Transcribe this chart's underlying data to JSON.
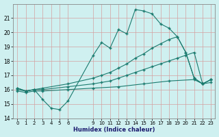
{
  "xlabel": "Humidex (Indice chaleur)",
  "bg_color": "#cff0f0",
  "grid_color": "#e8e8e8",
  "line_color": "#1a7a6e",
  "x_ticks": [
    0,
    1,
    2,
    3,
    4,
    5,
    6,
    9,
    10,
    11,
    12,
    13,
    14,
    15,
    16,
    17,
    18,
    19,
    20,
    21,
    22,
    23
  ],
  "ylim": [
    14,
    22
  ],
  "xlim": [
    -0.5,
    23.5
  ],
  "yticks": [
    14,
    15,
    16,
    17,
    18,
    19,
    20,
    21
  ],
  "lines": [
    {
      "x": [
        0,
        1,
        2,
        3,
        4,
        5,
        6,
        9,
        10,
        11,
        12,
        13,
        14,
        15,
        16,
        17,
        18,
        19,
        20,
        21,
        22,
        23
      ],
      "y": [
        16.1,
        15.9,
        16.0,
        15.3,
        14.7,
        14.6,
        15.2,
        18.4,
        19.3,
        18.9,
        20.2,
        19.9,
        21.6,
        21.5,
        21.3,
        20.6,
        20.3,
        19.7,
        18.6,
        16.8,
        16.4,
        16.7
      ]
    },
    {
      "x": [
        0,
        1,
        2,
        3,
        6,
        9,
        10,
        11,
        12,
        13,
        14,
        15,
        16,
        17,
        18,
        19,
        20,
        21,
        22,
        23
      ],
      "y": [
        16.1,
        15.9,
        16.0,
        16.1,
        16.4,
        16.8,
        17.0,
        17.2,
        17.5,
        17.8,
        18.2,
        18.5,
        18.9,
        19.2,
        19.5,
        19.7,
        18.6,
        16.8,
        16.4,
        16.7
      ]
    },
    {
      "x": [
        0,
        1,
        2,
        3,
        6,
        9,
        10,
        11,
        12,
        13,
        14,
        15,
        16,
        17,
        18,
        19,
        20,
        21,
        22,
        23
      ],
      "y": [
        16.0,
        15.9,
        16.0,
        16.0,
        16.2,
        16.4,
        16.5,
        16.6,
        16.8,
        17.0,
        17.2,
        17.4,
        17.6,
        17.8,
        18.0,
        18.2,
        18.4,
        18.6,
        16.4,
        16.7
      ]
    },
    {
      "x": [
        0,
        1,
        2,
        3,
        6,
        9,
        12,
        15,
        18,
        21,
        22,
        23
      ],
      "y": [
        15.9,
        15.8,
        15.9,
        15.9,
        16.0,
        16.1,
        16.2,
        16.4,
        16.6,
        16.7,
        16.4,
        16.5
      ]
    }
  ]
}
